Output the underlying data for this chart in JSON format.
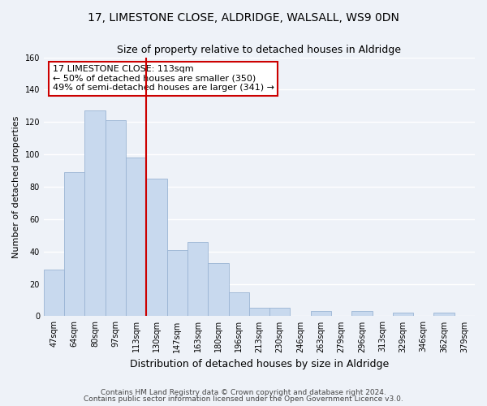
{
  "title": "17, LIMESTONE CLOSE, ALDRIDGE, WALSALL, WS9 0DN",
  "subtitle": "Size of property relative to detached houses in Aldridge",
  "xlabel": "Distribution of detached houses by size in Aldridge",
  "ylabel": "Number of detached properties",
  "bin_labels": [
    "47sqm",
    "64sqm",
    "80sqm",
    "97sqm",
    "113sqm",
    "130sqm",
    "147sqm",
    "163sqm",
    "180sqm",
    "196sqm",
    "213sqm",
    "230sqm",
    "246sqm",
    "263sqm",
    "279sqm",
    "296sqm",
    "313sqm",
    "329sqm",
    "346sqm",
    "362sqm",
    "379sqm"
  ],
  "bar_values": [
    29,
    89,
    127,
    121,
    98,
    85,
    41,
    46,
    33,
    15,
    5,
    5,
    0,
    3,
    0,
    3,
    0,
    2,
    0,
    2,
    0
  ],
  "bar_color": "#c8d9ee",
  "bar_edge_color": "#9ab4d4",
  "vline_index": 4,
  "vline_color": "#cc0000",
  "annotation_text": "17 LIMESTONE CLOSE: 113sqm\n← 50% of detached houses are smaller (350)\n49% of semi-detached houses are larger (341) →",
  "annotation_box_facecolor": "#ffffff",
  "annotation_box_edgecolor": "#cc0000",
  "ylim": [
    0,
    160
  ],
  "yticks": [
    0,
    20,
    40,
    60,
    80,
    100,
    120,
    140,
    160
  ],
  "footer_line1": "Contains HM Land Registry data © Crown copyright and database right 2024.",
  "footer_line2": "Contains public sector information licensed under the Open Government Licence v3.0.",
  "bg_color": "#eef2f8",
  "plot_bg_color": "#eef2f8",
  "grid_color": "#ffffff",
  "title_fontsize": 10,
  "subtitle_fontsize": 9,
  "xlabel_fontsize": 9,
  "ylabel_fontsize": 8,
  "tick_fontsize": 7,
  "annotation_fontsize": 8,
  "footer_fontsize": 6.5
}
